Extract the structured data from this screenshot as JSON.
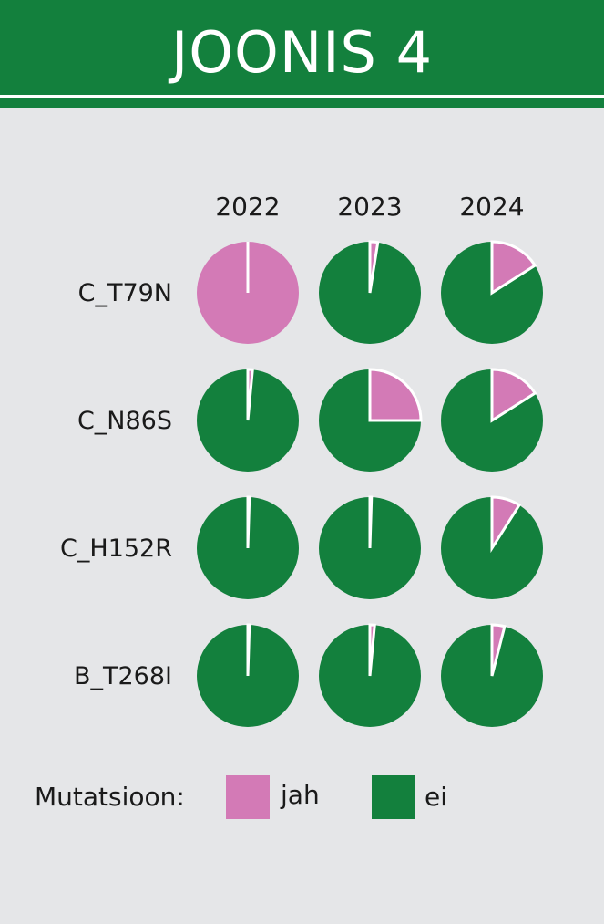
{
  "header": {
    "title": "JOONIS 4"
  },
  "colors": {
    "jah": "#d37ab6",
    "ei": "#13803d",
    "header": "#13803d",
    "background": "#e5e6e8"
  },
  "chart_data": {
    "type": "pie",
    "years": [
      "2022",
      "2023",
      "2024"
    ],
    "rows": [
      {
        "label": "C_T79N",
        "jah": [
          100,
          2.5,
          16
        ]
      },
      {
        "label": "C_N86S",
        "jah": [
          1.5,
          25,
          16
        ]
      },
      {
        "label": "C_H152R",
        "jah": [
          0.5,
          0.5,
          9
        ]
      },
      {
        "label": "B_T268I",
        "jah": [
          0.5,
          1.5,
          4
        ]
      }
    ]
  },
  "legend": {
    "prefix": "Mutatsioon:",
    "items": [
      {
        "key": "jah",
        "label": "jah"
      },
      {
        "key": "ei",
        "label": "ei"
      }
    ]
  }
}
